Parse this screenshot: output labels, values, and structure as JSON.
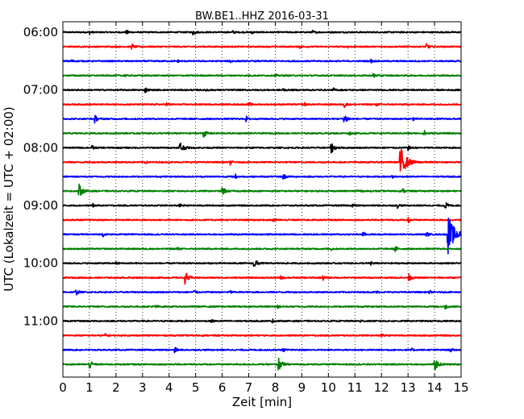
{
  "chart_data": {
    "type": "line",
    "title": "BW.BE1..HHZ 2016-03-31",
    "xlabel": "Zeit  [min]",
    "ylabel": "UTC (Lokalzeit = UTC + 02:00)",
    "xlim": [
      0,
      15
    ],
    "x_ticks": [
      "0",
      "1",
      "2",
      "3",
      "4",
      "5",
      "6",
      "7",
      "8",
      "9",
      "10",
      "11",
      "12",
      "13",
      "14",
      "15"
    ],
    "y_ticks": [
      "06:00",
      "07:00",
      "08:00",
      "09:00",
      "10:00",
      "11:00"
    ],
    "grid": true,
    "line_colors": [
      "#000000",
      "#ff0000",
      "#0000ff",
      "#008000"
    ],
    "series": [
      {
        "start": "06:00",
        "events": [
          {
            "x": 1.0,
            "amp": 0.3
          },
          {
            "x": 2.4,
            "amp": 0.4
          },
          {
            "x": 4.9,
            "amp": 0.5
          },
          {
            "x": 6.4,
            "amp": 0.25
          },
          {
            "x": 7.1,
            "amp": 0.3
          },
          {
            "x": 9.4,
            "amp": 0.3
          }
        ]
      },
      {
        "start": "06:15",
        "events": [
          {
            "x": 2.6,
            "amp": 0.5
          },
          {
            "x": 8.9,
            "amp": 0.4
          },
          {
            "x": 10.7,
            "amp": 0.3
          },
          {
            "x": 13.7,
            "amp": 0.6
          }
        ]
      },
      {
        "start": "06:30",
        "events": [
          {
            "x": 0.3,
            "amp": 0.4
          },
          {
            "x": 4.3,
            "amp": 0.3
          },
          {
            "x": 6.3,
            "amp": 0.4
          },
          {
            "x": 11.6,
            "amp": 0.3
          }
        ]
      },
      {
        "start": "06:45",
        "events": [
          {
            "x": 2.3,
            "amp": 0.3
          },
          {
            "x": 8.0,
            "amp": 0.25
          },
          {
            "x": 11.7,
            "amp": 0.5
          }
        ]
      },
      {
        "start": "07:00",
        "events": [
          {
            "x": 3.1,
            "amp": 0.5
          },
          {
            "x": 5.4,
            "amp": 0.3
          },
          {
            "x": 8.3,
            "amp": 0.3
          },
          {
            "x": 10.2,
            "amp": 0.3
          }
        ]
      },
      {
        "start": "07:15",
        "events": [
          {
            "x": 3.9,
            "amp": 0.3
          },
          {
            "x": 7.0,
            "amp": 0.4
          },
          {
            "x": 9.1,
            "amp": 0.3
          },
          {
            "x": 10.6,
            "amp": 0.6
          },
          {
            "x": 11.8,
            "amp": 0.3
          }
        ]
      },
      {
        "start": "07:30",
        "events": [
          {
            "x": 1.2,
            "amp": 0.7
          },
          {
            "x": 6.9,
            "amp": 0.5
          },
          {
            "x": 10.6,
            "amp": 1.1
          },
          {
            "x": 13.2,
            "amp": 0.3
          }
        ]
      },
      {
        "start": "07:45",
        "events": [
          {
            "x": 5.3,
            "amp": 0.8
          },
          {
            "x": 10.8,
            "amp": 0.3
          },
          {
            "x": 13.6,
            "amp": 0.6
          }
        ]
      },
      {
        "start": "08:00",
        "events": [
          {
            "x": 1.1,
            "amp": 0.4
          },
          {
            "x": 4.4,
            "amp": 1.3
          },
          {
            "x": 10.1,
            "amp": 1.1
          },
          {
            "x": 13.0,
            "amp": 0.4
          }
        ]
      },
      {
        "start": "08:15",
        "events": [
          {
            "x": 3.1,
            "amp": 0.3
          },
          {
            "x": 6.3,
            "amp": 0.4
          },
          {
            "x": 12.7,
            "amp": 3.0
          }
        ]
      },
      {
        "start": "08:30",
        "events": [
          {
            "x": 6.5,
            "amp": 0.4
          },
          {
            "x": 8.3,
            "amp": 0.6
          },
          {
            "x": 12.4,
            "amp": 0.3
          }
        ]
      },
      {
        "start": "08:45",
        "events": [
          {
            "x": 0.6,
            "amp": 1.3
          },
          {
            "x": 6.0,
            "amp": 0.9
          },
          {
            "x": 11.1,
            "amp": 0.4
          },
          {
            "x": 12.8,
            "amp": 0.4
          }
        ]
      },
      {
        "start": "09:00",
        "events": [
          {
            "x": 1.1,
            "amp": 0.4
          },
          {
            "x": 4.4,
            "amp": 0.3
          },
          {
            "x": 10.9,
            "amp": 0.4
          },
          {
            "x": 12.6,
            "amp": 0.4
          },
          {
            "x": 14.4,
            "amp": 0.7
          }
        ]
      },
      {
        "start": "09:15",
        "events": [
          {
            "x": 7.9,
            "amp": 0.5
          },
          {
            "x": 13.0,
            "amp": 0.6
          }
        ]
      },
      {
        "start": "09:30",
        "events": [
          {
            "x": 1.5,
            "amp": 0.4
          },
          {
            "x": 11.3,
            "amp": 0.5
          },
          {
            "x": 13.7,
            "amp": 0.4
          },
          {
            "x": 14.5,
            "amp": 3.5
          }
        ]
      },
      {
        "start": "09:45",
        "events": [
          {
            "x": 4.3,
            "amp": 0.3
          },
          {
            "x": 10.1,
            "amp": 0.3
          },
          {
            "x": 12.5,
            "amp": 0.6
          }
        ]
      },
      {
        "start": "10:00",
        "events": [
          {
            "x": 2.0,
            "amp": 0.3
          },
          {
            "x": 7.2,
            "amp": 1.0
          },
          {
            "x": 11.6,
            "amp": 0.4
          }
        ]
      },
      {
        "start": "10:15",
        "events": [
          {
            "x": 4.6,
            "amp": 1.2
          },
          {
            "x": 8.2,
            "amp": 0.4
          },
          {
            "x": 9.8,
            "amp": 0.4
          },
          {
            "x": 13.0,
            "amp": 0.9
          }
        ]
      },
      {
        "start": "10:30",
        "events": [
          {
            "x": 0.5,
            "amp": 0.5
          },
          {
            "x": 4.9,
            "amp": 0.6
          },
          {
            "x": 6.3,
            "amp": 0.3
          },
          {
            "x": 11.8,
            "amp": 0.3
          },
          {
            "x": 13.8,
            "amp": 0.3
          }
        ]
      },
      {
        "start": "10:45",
        "events": [
          {
            "x": 3.5,
            "amp": 0.3
          },
          {
            "x": 8.1,
            "amp": 0.3
          },
          {
            "x": 14.4,
            "amp": 0.5
          }
        ]
      },
      {
        "start": "11:00",
        "events": [
          {
            "x": 5.6,
            "amp": 0.3
          },
          {
            "x": 7.9,
            "amp": 0.3
          },
          {
            "x": 11.2,
            "amp": 0.3
          }
        ]
      },
      {
        "start": "11:15",
        "events": [
          {
            "x": 1.6,
            "amp": 0.3
          },
          {
            "x": 12.0,
            "amp": 0.3
          }
        ]
      },
      {
        "start": "11:30",
        "events": [
          {
            "x": 4.2,
            "amp": 0.6
          },
          {
            "x": 8.3,
            "amp": 0.3
          },
          {
            "x": 13.1,
            "amp": 0.4
          },
          {
            "x": 14.6,
            "amp": 0.3
          }
        ]
      },
      {
        "start": "11:45",
        "events": [
          {
            "x": 1.0,
            "amp": 0.8
          },
          {
            "x": 8.1,
            "amp": 1.4
          },
          {
            "x": 14.0,
            "amp": 1.2
          }
        ]
      }
    ]
  }
}
